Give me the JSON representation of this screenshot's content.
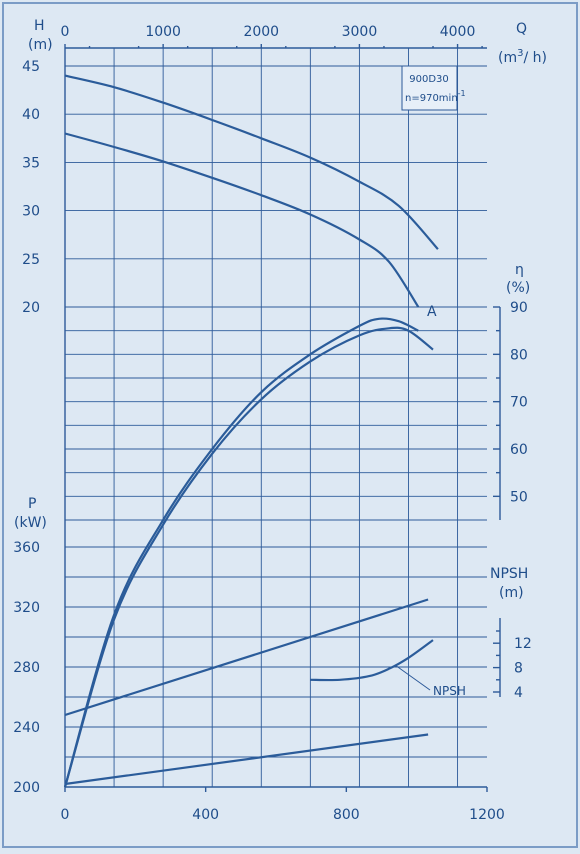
{
  "chart_data": {
    "type": "line",
    "note_box": {
      "model": "900D30",
      "speed": "n=970min",
      "speed_exp": "-1"
    },
    "top_axis": {
      "label": "Q",
      "unit_prefix": "(m",
      "unit_exp": "3",
      "unit_suffix": "/ h)",
      "range": [
        0,
        4300
      ],
      "ticks": [
        "0",
        "1000",
        "2000",
        "3000",
        "4000"
      ]
    },
    "bottom_axis": {
      "range": [
        0,
        1200
      ],
      "ticks": [
        "0",
        "400",
        "800",
        "1200"
      ]
    },
    "head_axis": {
      "label": "H",
      "unit": "(m)",
      "range": [
        20,
        45
      ],
      "ticks": [
        "45",
        "40",
        "35",
        "30",
        "25",
        "20"
      ]
    },
    "eff_axis": {
      "label": "η",
      "unit": "(%)",
      "range": [
        45,
        90
      ],
      "ticks": [
        "90",
        "80",
        "70",
        "60",
        "50"
      ]
    },
    "power_axis": {
      "label": "P",
      "unit": "(kW)",
      "range": [
        200,
        360
      ],
      "ticks": [
        "360",
        "320",
        "280",
        "240",
        "200"
      ]
    },
    "npsh_axis": {
      "label": "NPSH",
      "unit": "(m)",
      "range": [
        4,
        14
      ],
      "ticks": [
        "12",
        "8",
        "4"
      ]
    },
    "annotations": {
      "curve_label_a": "A",
      "npsh_label": "NPSH"
    },
    "series": [
      {
        "axis": "head",
        "x_unit": "Q m3/h",
        "points": [
          [
            0,
            44
          ],
          [
            500,
            42.8
          ],
          [
            1000,
            41.2
          ],
          [
            1500,
            39.4
          ],
          [
            2000,
            37.5
          ],
          [
            2500,
            35.5
          ],
          [
            3000,
            33
          ],
          [
            3400,
            30.5
          ],
          [
            3800,
            26
          ]
        ]
      },
      {
        "axis": "head",
        "x_unit": "Q m3/h",
        "points": [
          [
            0,
            38
          ],
          [
            500,
            36.6
          ],
          [
            1000,
            35.1
          ],
          [
            1500,
            33.4
          ],
          [
            2000,
            31.6
          ],
          [
            2500,
            29.6
          ],
          [
            3000,
            27
          ],
          [
            3300,
            24.7
          ],
          [
            3600,
            20
          ]
        ]
      },
      {
        "axis": "efficiency",
        "x_unit": "Q m3/h",
        "points": [
          [
            0,
            0
          ],
          [
            500,
            25
          ],
          [
            1000,
            45
          ],
          [
            1500,
            60
          ],
          [
            2000,
            72
          ],
          [
            2500,
            80
          ],
          [
            3000,
            86
          ],
          [
            3200,
            87.5
          ],
          [
            3400,
            87
          ],
          [
            3600,
            85
          ]
        ]
      },
      {
        "axis": "efficiency",
        "x_unit": "Q m3/h",
        "points": [
          [
            0,
            0
          ],
          [
            500,
            24
          ],
          [
            1000,
            44
          ],
          [
            1500,
            59
          ],
          [
            2000,
            70.5
          ],
          [
            2500,
            78.5
          ],
          [
            3000,
            84
          ],
          [
            3300,
            85.5
          ],
          [
            3500,
            85
          ],
          [
            3750,
            81
          ]
        ]
      },
      {
        "axis": "power",
        "x_unit": "Q m3/h",
        "points": [
          [
            0,
            248
          ],
          [
            3700,
            325
          ]
        ]
      },
      {
        "axis": "power",
        "x_unit": "Q m3/h",
        "points": [
          [
            0,
            202
          ],
          [
            3700,
            235
          ]
        ]
      },
      {
        "axis": "npsh",
        "x_unit": "Q m3/h",
        "points": [
          [
            2500,
            6
          ],
          [
            2800,
            6
          ],
          [
            3100,
            6.6
          ],
          [
            3300,
            7.8
          ],
          [
            3500,
            9.6
          ],
          [
            3750,
            12.5
          ]
        ]
      }
    ],
    "colors": {
      "background": "#dde8f3",
      "line": "#2b5c9a",
      "text": "#1f4d8a"
    }
  }
}
